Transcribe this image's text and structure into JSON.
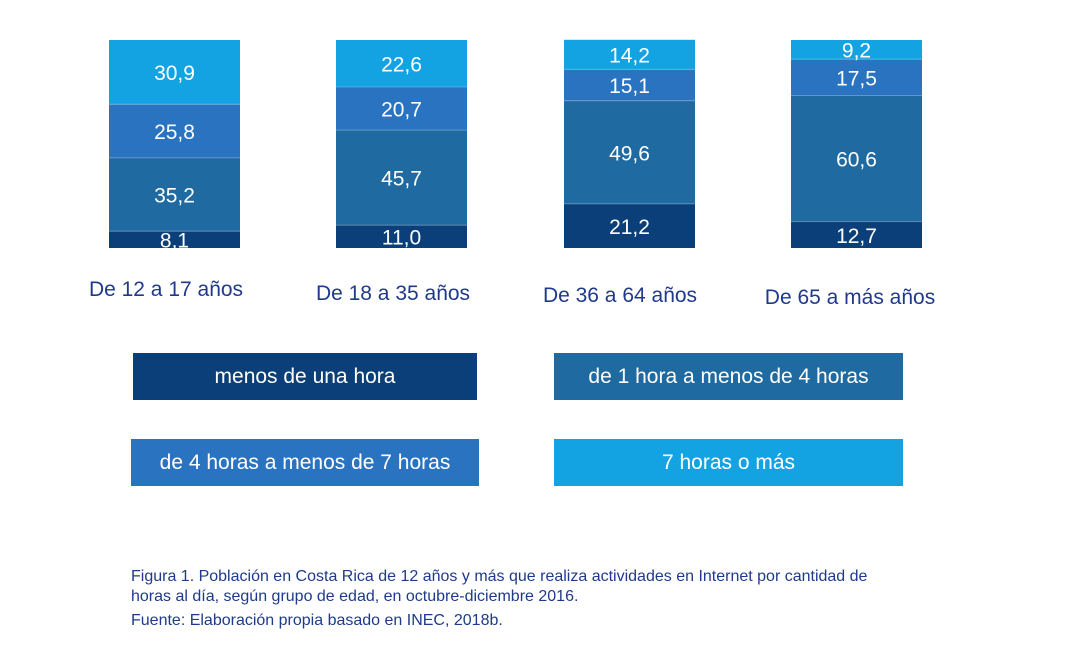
{
  "chart_data": {
    "type": "bar",
    "stacked": true,
    "categories": [
      "De 12 a 17 años",
      "De 18 a 35 años",
      "De 36 a 64 años",
      "De 65 a más años"
    ],
    "series": [
      {
        "name": "menos de una hora",
        "color": "#0b3f7a",
        "values": [
          8.1,
          11.0,
          21.2,
          12.7
        ],
        "labels": [
          "8,1",
          "11,0",
          "21,2",
          "12,7"
        ]
      },
      {
        "name": "de 1 hora a menos de 4 horas",
        "color": "#1f6aa0",
        "values": [
          35.2,
          45.7,
          49.6,
          60.6
        ],
        "labels": [
          "35,2",
          "45,7",
          "49,6",
          "60,6"
        ]
      },
      {
        "name": "de 4 horas a menos de 7 horas",
        "color": "#2a73c0",
        "values": [
          25.8,
          20.7,
          15.1,
          17.5
        ],
        "labels": [
          "25,8",
          "20,7",
          "15,1",
          "17,5"
        ]
      },
      {
        "name": "7 horas o más",
        "color": "#14a3e2",
        "values": [
          30.9,
          22.6,
          14.2,
          9.2
        ],
        "labels": [
          "30,9",
          "22,6",
          "14,2",
          "9,2"
        ]
      }
    ],
    "ylim": [
      0,
      100
    ],
    "grid": false,
    "legend_position": "bottom"
  },
  "caption": {
    "line1": "Figura 1. Población en Costa Rica de 12 años y más que realiza actividades en Internet por cantidad de",
    "line2": "horas al día, según grupo de edad, en octubre-diciembre 2016.",
    "line3": "Fuente: Elaboración propia basado en INEC, 2018b."
  }
}
